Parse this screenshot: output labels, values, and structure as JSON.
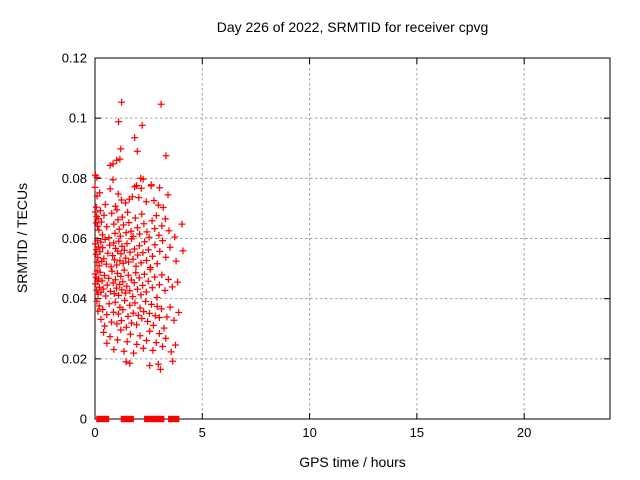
{
  "chart_data": {
    "type": "scatter",
    "title": "Day 226 of 2022, SRMTID for receiver cpvg",
    "xlabel": "GPS time / hours",
    "ylabel": "SRMTID / TECUs",
    "xlim": [
      0,
      24
    ],
    "ylim": [
      0,
      0.12
    ],
    "xticks": [
      0,
      5,
      10,
      15,
      20
    ],
    "xtick_labels": [
      "0",
      "5",
      "10",
      "15",
      "20"
    ],
    "yticks": [
      0,
      0.02,
      0.04,
      0.06,
      0.08,
      0.1,
      0.12
    ],
    "ytick_labels": [
      "0",
      "0.02",
      "0.04",
      "0.06",
      "0.08",
      "0.1",
      "0.12"
    ],
    "grid": true,
    "grid_style": "dashed",
    "legend_position": "none",
    "marker": "plus",
    "colors": {
      "marker": "#ff0000",
      "frame": "#000000",
      "grid": "#a0a0a0",
      "background": "#ffffff",
      "text": "#000000"
    },
    "series_name": "SRMTID",
    "zero_value_runs_hours": [
      [
        0.15,
        0.57
      ],
      [
        1.29,
        1.37
      ],
      [
        1.51,
        1.72
      ],
      [
        2.38,
        2.88
      ],
      [
        2.92,
        3.14
      ],
      [
        3.5,
        3.84
      ]
    ],
    "points": [
      [
        1.24,
        0.1053
      ],
      [
        3.08,
        0.1046
      ],
      [
        1.1,
        0.0988
      ],
      [
        2.2,
        0.0976
      ],
      [
        1.85,
        0.0935
      ],
      [
        1.2,
        0.0898
      ],
      [
        1.97,
        0.089
      ],
      [
        3.31,
        0.0875
      ],
      [
        1.16,
        0.0864
      ],
      [
        1.01,
        0.086
      ],
      [
        0.84,
        0.0848
      ],
      [
        0.71,
        0.0843
      ],
      [
        0.02,
        0.081
      ],
      [
        0.09,
        0.0803
      ],
      [
        0.84,
        0.0795
      ],
      [
        2.13,
        0.08
      ],
      [
        2.24,
        0.0797
      ],
      [
        1.94,
        0.0776
      ],
      [
        2.62,
        0.0779
      ],
      [
        0.0,
        0.077
      ],
      [
        0.71,
        0.0765
      ],
      [
        1.85,
        0.0772
      ],
      [
        2.16,
        0.0767
      ],
      [
        2.62,
        0.0775
      ],
      [
        3.01,
        0.0769
      ],
      [
        3.4,
        0.0745
      ],
      [
        1.23,
        0.0728
      ],
      [
        1.74,
        0.0739
      ],
      [
        2.04,
        0.0736
      ],
      [
        2.39,
        0.0722
      ],
      [
        0.1,
        0.0741
      ],
      [
        0.22,
        0.0752
      ],
      [
        0.48,
        0.0713
      ],
      [
        0.95,
        0.0707
      ],
      [
        1.42,
        0.0718
      ],
      [
        1.6,
        0.0731
      ],
      [
        2.75,
        0.0726
      ],
      [
        2.95,
        0.0711
      ],
      [
        3.18,
        0.0703
      ],
      [
        0.06,
        0.0704
      ],
      [
        1.08,
        0.0748
      ],
      [
        0.02,
        0.0688
      ],
      [
        0.05,
        0.0652
      ],
      [
        0.08,
        0.0673
      ],
      [
        0.12,
        0.0641
      ],
      [
        0.15,
        0.0666
      ],
      [
        0.18,
        0.0628
      ],
      [
        0.25,
        0.0692
      ],
      [
        0.3,
        0.0655
      ],
      [
        0.35,
        0.0612
      ],
      [
        0.42,
        0.0677
      ],
      [
        0.55,
        0.0639
      ],
      [
        0.65,
        0.0603
      ],
      [
        0.78,
        0.0684
      ],
      [
        0.88,
        0.0648
      ],
      [
        0.93,
        0.0617
      ],
      [
        1.02,
        0.0695
      ],
      [
        1.07,
        0.0662
      ],
      [
        1.13,
        0.0631
      ],
      [
        1.18,
        0.0608
      ],
      [
        1.27,
        0.0671
      ],
      [
        1.33,
        0.0645
      ],
      [
        1.45,
        0.0619
      ],
      [
        1.52,
        0.0687
      ],
      [
        1.58,
        0.0653
      ],
      [
        1.68,
        0.0624
      ],
      [
        1.78,
        0.0607
      ],
      [
        1.88,
        0.0668
      ],
      [
        1.98,
        0.0636
      ],
      [
        2.08,
        0.0615
      ],
      [
        2.18,
        0.0681
      ],
      [
        2.28,
        0.0649
      ],
      [
        2.42,
        0.0622
      ],
      [
        2.52,
        0.0604
      ],
      [
        2.66,
        0.0659
      ],
      [
        2.78,
        0.0633
      ],
      [
        2.86,
        0.0676
      ],
      [
        2.98,
        0.0611
      ],
      [
        3.12,
        0.0642
      ],
      [
        3.28,
        0.0665
      ],
      [
        3.45,
        0.0626
      ],
      [
        3.72,
        0.0605
      ],
      [
        4.05,
        0.0648
      ],
      [
        0.02,
        0.0582
      ],
      [
        0.04,
        0.0548
      ],
      [
        0.07,
        0.0563
      ],
      [
        0.09,
        0.0521
      ],
      [
        0.11,
        0.0594
      ],
      [
        0.13,
        0.0537
      ],
      [
        0.16,
        0.0572
      ],
      [
        0.19,
        0.0509
      ],
      [
        0.23,
        0.0556
      ],
      [
        0.27,
        0.0588
      ],
      [
        0.31,
        0.0524
      ],
      [
        0.36,
        0.0569
      ],
      [
        0.41,
        0.0533
      ],
      [
        0.47,
        0.0597
      ],
      [
        0.53,
        0.0515
      ],
      [
        0.6,
        0.0551
      ],
      [
        0.68,
        0.0578
      ],
      [
        0.75,
        0.0506
      ],
      [
        0.82,
        0.0543
      ],
      [
        0.87,
        0.0585
      ],
      [
        0.91,
        0.0529
      ],
      [
        0.96,
        0.0567
      ],
      [
        1.01,
        0.0512
      ],
      [
        1.06,
        0.0558
      ],
      [
        1.11,
        0.0591
      ],
      [
        1.16,
        0.0526
      ],
      [
        1.21,
        0.0549
      ],
      [
        1.26,
        0.0574
      ],
      [
        1.31,
        0.0518
      ],
      [
        1.37,
        0.0561
      ],
      [
        1.43,
        0.0535
      ],
      [
        1.49,
        0.0583
      ],
      [
        1.56,
        0.0522
      ],
      [
        1.63,
        0.0554
      ],
      [
        1.7,
        0.0599
      ],
      [
        1.77,
        0.0531
      ],
      [
        1.84,
        0.0565
      ],
      [
        1.91,
        0.0508
      ],
      [
        1.99,
        0.0545
      ],
      [
        2.07,
        0.0576
      ],
      [
        2.15,
        0.0519
      ],
      [
        2.23,
        0.0553
      ],
      [
        2.31,
        0.0589
      ],
      [
        2.4,
        0.0527
      ],
      [
        2.49,
        0.0562
      ],
      [
        2.58,
        0.0504
      ],
      [
        2.68,
        0.0541
      ],
      [
        2.79,
        0.0579
      ],
      [
        2.9,
        0.0516
      ],
      [
        3.02,
        0.0557
      ],
      [
        3.15,
        0.0593
      ],
      [
        3.3,
        0.0538
      ],
      [
        3.5,
        0.0571
      ],
      [
        3.78,
        0.0525
      ],
      [
        4.1,
        0.0559
      ],
      [
        0.01,
        0.0482
      ],
      [
        0.03,
        0.0449
      ],
      [
        0.05,
        0.0471
      ],
      [
        0.08,
        0.0428
      ],
      [
        0.1,
        0.0493
      ],
      [
        0.12,
        0.0457
      ],
      [
        0.14,
        0.0415
      ],
      [
        0.17,
        0.0466
      ],
      [
        0.2,
        0.0438
      ],
      [
        0.24,
        0.0488
      ],
      [
        0.28,
        0.0421
      ],
      [
        0.33,
        0.0459
      ],
      [
        0.38,
        0.0432
      ],
      [
        0.44,
        0.0477
      ],
      [
        0.5,
        0.0409
      ],
      [
        0.57,
        0.0445
      ],
      [
        0.64,
        0.0468
      ],
      [
        0.72,
        0.0424
      ],
      [
        0.79,
        0.0491
      ],
      [
        0.85,
        0.0452
      ],
      [
        0.9,
        0.0417
      ],
      [
        0.95,
        0.0463
      ],
      [
        1.0,
        0.0435
      ],
      [
        1.05,
        0.0484
      ],
      [
        1.1,
        0.0411
      ],
      [
        1.15,
        0.0447
      ],
      [
        1.2,
        0.0474
      ],
      [
        1.25,
        0.0429
      ],
      [
        1.3,
        0.0456
      ],
      [
        1.36,
        0.0495
      ],
      [
        1.42,
        0.0419
      ],
      [
        1.48,
        0.0441
      ],
      [
        1.55,
        0.0478
      ],
      [
        1.62,
        0.0426
      ],
      [
        1.69,
        0.0462
      ],
      [
        1.76,
        0.0407
      ],
      [
        1.83,
        0.0453
      ],
      [
        1.9,
        0.0486
      ],
      [
        1.98,
        0.0431
      ],
      [
        2.06,
        0.0469
      ],
      [
        2.14,
        0.0413
      ],
      [
        2.22,
        0.0444
      ],
      [
        2.3,
        0.0481
      ],
      [
        2.39,
        0.0422
      ],
      [
        2.48,
        0.0458
      ],
      [
        2.57,
        0.0498
      ],
      [
        2.67,
        0.0436
      ],
      [
        2.78,
        0.0472
      ],
      [
        2.89,
        0.0404
      ],
      [
        3.0,
        0.0446
      ],
      [
        3.12,
        0.0479
      ],
      [
        3.26,
        0.0427
      ],
      [
        3.42,
        0.0464
      ],
      [
        3.6,
        0.0439
      ],
      [
        3.85,
        0.0455
      ],
      [
        0.09,
        0.0392
      ],
      [
        0.14,
        0.0358
      ],
      [
        0.2,
        0.0376
      ],
      [
        0.28,
        0.0331
      ],
      [
        0.36,
        0.0364
      ],
      [
        0.45,
        0.0309
      ],
      [
        0.55,
        0.0347
      ],
      [
        0.66,
        0.0383
      ],
      [
        0.77,
        0.0322
      ],
      [
        0.86,
        0.0355
      ],
      [
        0.94,
        0.0388
      ],
      [
        1.02,
        0.0316
      ],
      [
        1.09,
        0.0349
      ],
      [
        1.16,
        0.0371
      ],
      [
        1.23,
        0.0327
      ],
      [
        1.3,
        0.0363
      ],
      [
        1.38,
        0.0394
      ],
      [
        1.46,
        0.0305
      ],
      [
        1.54,
        0.0341
      ],
      [
        1.62,
        0.0378
      ],
      [
        1.7,
        0.0319
      ],
      [
        1.78,
        0.0352
      ],
      [
        1.86,
        0.0386
      ],
      [
        1.94,
        0.0313
      ],
      [
        2.02,
        0.0345
      ],
      [
        2.1,
        0.0369
      ],
      [
        2.18,
        0.0334
      ],
      [
        2.27,
        0.0357
      ],
      [
        2.36,
        0.0391
      ],
      [
        2.45,
        0.0324
      ],
      [
        2.54,
        0.0351
      ],
      [
        2.63,
        0.0381
      ],
      [
        2.72,
        0.0311
      ],
      [
        2.81,
        0.0343
      ],
      [
        2.9,
        0.0374
      ],
      [
        3.0,
        0.0337
      ],
      [
        3.1,
        0.0366
      ],
      [
        3.22,
        0.0302
      ],
      [
        3.35,
        0.0339
      ],
      [
        3.5,
        0.0372
      ],
      [
        3.68,
        0.0328
      ],
      [
        3.9,
        0.0354
      ],
      [
        0.4,
        0.0288
      ],
      [
        0.55,
        0.0252
      ],
      [
        0.7,
        0.0274
      ],
      [
        0.88,
        0.0231
      ],
      [
        1.05,
        0.0263
      ],
      [
        1.2,
        0.0296
      ],
      [
        1.35,
        0.0225
      ],
      [
        1.5,
        0.0257
      ],
      [
        1.65,
        0.0282
      ],
      [
        1.8,
        0.0219
      ],
      [
        1.95,
        0.0248
      ],
      [
        2.1,
        0.0277
      ],
      [
        2.25,
        0.0235
      ],
      [
        2.4,
        0.0261
      ],
      [
        2.55,
        0.0292
      ],
      [
        2.7,
        0.0228
      ],
      [
        2.85,
        0.0254
      ],
      [
        3.0,
        0.0284
      ],
      [
        3.15,
        0.0241
      ],
      [
        3.3,
        0.0268
      ],
      [
        3.55,
        0.0223
      ],
      [
        3.75,
        0.0246
      ],
      [
        1.45,
        0.019
      ],
      [
        1.62,
        0.0185
      ],
      [
        2.55,
        0.0178
      ],
      [
        2.95,
        0.0182
      ],
      [
        3.05,
        0.0165
      ],
      [
        3.62,
        0.0192
      ]
    ]
  }
}
